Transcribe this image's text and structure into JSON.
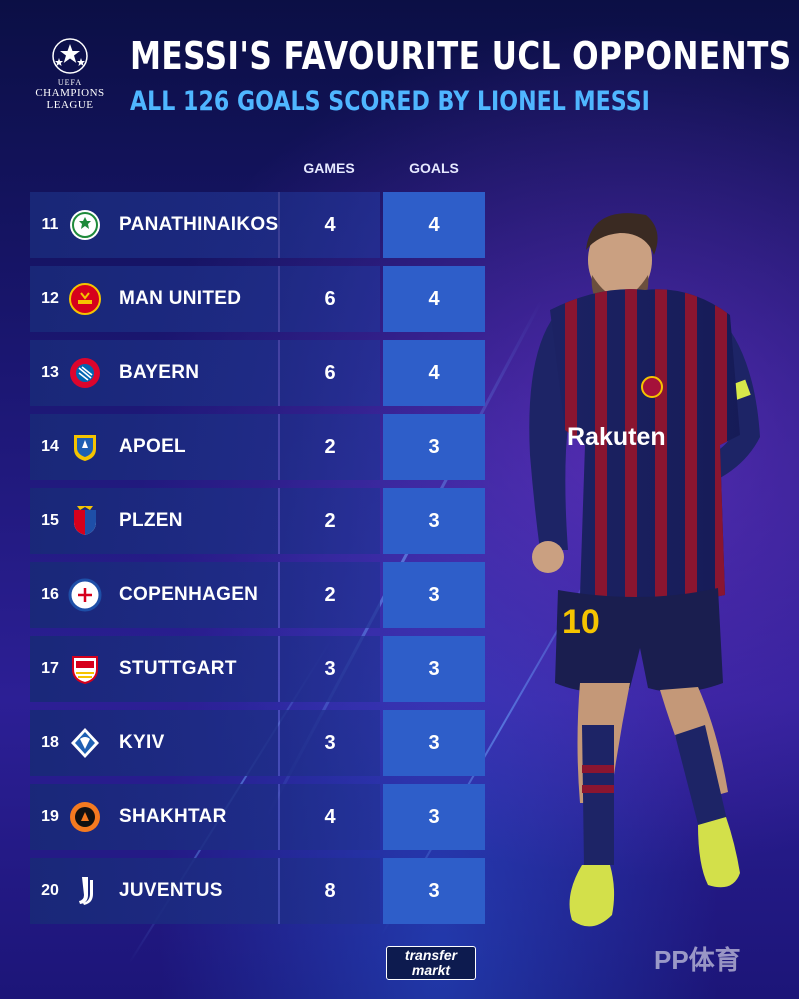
{
  "logo": {
    "uefa": "UEFA",
    "line1": "CHAMPIONS",
    "line2": "LEAGUE"
  },
  "title": "MESSI'S FAVOURITE UCL OPPONENTS",
  "subtitle": "ALL 126 GOALS SCORED BY LIONEL MESSI",
  "headers": {
    "games": "GAMES",
    "goals": "GOALS"
  },
  "rows": [
    {
      "rank": "11",
      "club": "PANATHINAIKOS",
      "games": "4",
      "goals": "4",
      "crest_icon": "panathinaikos-crest-icon"
    },
    {
      "rank": "12",
      "club": "MAN UNITED",
      "games": "6",
      "goals": "4",
      "crest_icon": "man-united-crest-icon"
    },
    {
      "rank": "13",
      "club": "BAYERN",
      "games": "6",
      "goals": "4",
      "crest_icon": "bayern-crest-icon"
    },
    {
      "rank": "14",
      "club": "APOEL",
      "games": "2",
      "goals": "3",
      "crest_icon": "apoel-crest-icon"
    },
    {
      "rank": "15",
      "club": "PLZEN",
      "games": "2",
      "goals": "3",
      "crest_icon": "plzen-crest-icon"
    },
    {
      "rank": "16",
      "club": "COPENHAGEN",
      "games": "2",
      "goals": "3",
      "crest_icon": "copenhagen-crest-icon"
    },
    {
      "rank": "17",
      "club": "STUTTGART",
      "games": "3",
      "goals": "3",
      "crest_icon": "stuttgart-crest-icon"
    },
    {
      "rank": "18",
      "club": "KYIV",
      "games": "3",
      "goals": "3",
      "crest_icon": "kyiv-crest-icon"
    },
    {
      "rank": "19",
      "club": "SHAKHTAR",
      "games": "4",
      "goals": "3",
      "crest_icon": "shakhtar-crest-icon"
    },
    {
      "rank": "20",
      "club": "JUVENTUS",
      "games": "8",
      "goals": "3",
      "crest_icon": "juventus-crest-icon"
    }
  ],
  "player": {
    "sponsor": "Rakuten",
    "number": "10"
  },
  "footer": {
    "brand_line1": "transfer",
    "brand_line2": "markt",
    "watermark": "PP体育"
  },
  "colors": {
    "background": "#1a1670",
    "accent_blue": "#4fb6ff",
    "goals_cell": "#2e5ec9"
  }
}
